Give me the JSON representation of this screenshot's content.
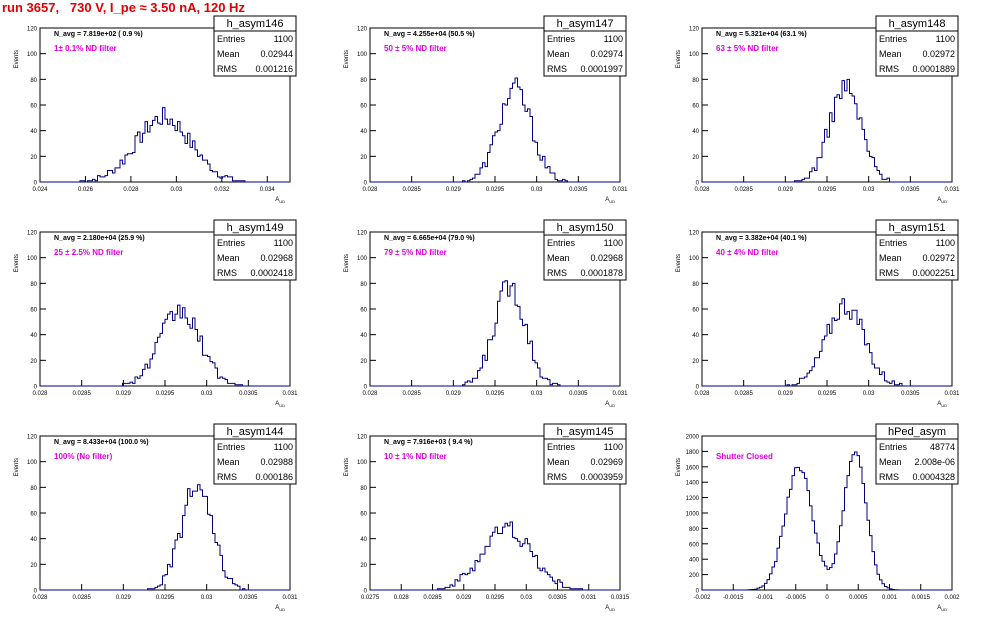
{
  "run_title": "run 3657,   730 V, I_pe ≈ 3.50 nA, 120 Hz",
  "colors": {
    "title": "#e00000",
    "histogram": "#000080",
    "annotation": "#e000e0",
    "text": "#000000"
  },
  "chart_data": [
    {
      "type": "histogram",
      "name": "h_asym146",
      "stats": {
        "entries_label": "Entries",
        "entries": "1100",
        "mean_label": "Mean",
        "mean": "0.02944",
        "rms_label": "RMS",
        "rms": "0.001216"
      },
      "n_avg": "N_avg = 7.819e+02 ( 0.9 %)",
      "filter": "1± 0.1% ND filter",
      "xlabel": "A_UD",
      "ylabel": "Events",
      "xlim": [
        0.024,
        0.035
      ],
      "ylim": [
        0,
        120
      ],
      "xticks": [
        0.024,
        0.026,
        0.028,
        0.03,
        0.032,
        0.034
      ],
      "xtick_labels": [
        "0.024",
        "0.026",
        "0.028",
        "0.03",
        "0.032",
        "0.034"
      ],
      "yticks": [
        0,
        20,
        40,
        60,
        80,
        100,
        120
      ],
      "shape": {
        "mode": "single",
        "center": 0.02944,
        "sigma": 0.001216,
        "peak": 50
      }
    },
    {
      "type": "histogram",
      "name": "h_asym147",
      "stats": {
        "entries_label": "Entries",
        "entries": "1100",
        "mean_label": "Mean",
        "mean": "0.02974",
        "rms_label": "RMS",
        "rms": "0.0001997"
      },
      "n_avg": "N_avg = 4.255e+04 (50.5 %)",
      "filter": "50 ± 5% ND filter",
      "xlabel": "A_UD",
      "ylabel": "Events",
      "xlim": [
        0.028,
        0.031
      ],
      "ylim": [
        0,
        120
      ],
      "xticks": [
        0.028,
        0.0285,
        0.029,
        0.0295,
        0.03,
        0.0305,
        0.031
      ],
      "xtick_labels": [
        "0.028",
        "0.0285",
        "0.029",
        "0.0295",
        "0.03",
        "0.0305",
        "0.031"
      ],
      "yticks": [
        0,
        20,
        40,
        60,
        80,
        100,
        120
      ],
      "shape": {
        "mode": "single",
        "center": 0.02974,
        "sigma": 0.0001997,
        "peak": 72
      }
    },
    {
      "type": "histogram",
      "name": "h_asym148",
      "stats": {
        "entries_label": "Entries",
        "entries": "1100",
        "mean_label": "Mean",
        "mean": "0.02972",
        "rms_label": "RMS",
        "rms": "0.0001889"
      },
      "n_avg": "N_avg = 5.321e+04 (63.1 %)",
      "filter": "63 ± 5% ND filter",
      "xlabel": "A_UD",
      "ylabel": "Events",
      "xlim": [
        0.028,
        0.031
      ],
      "ylim": [
        0,
        120
      ],
      "xticks": [
        0.028,
        0.0285,
        0.029,
        0.0295,
        0.03,
        0.0305,
        0.031
      ],
      "xtick_labels": [
        "0.028",
        "0.0285",
        "0.029",
        "0.0295",
        "0.03",
        "0.0305",
        "0.031"
      ],
      "yticks": [
        0,
        20,
        40,
        60,
        80,
        100,
        120
      ],
      "shape": {
        "mode": "single",
        "center": 0.02972,
        "sigma": 0.0001889,
        "peak": 74
      }
    },
    {
      "type": "histogram",
      "name": "h_asym149",
      "stats": {
        "entries_label": "Entries",
        "entries": "1100",
        "mean_label": "Mean",
        "mean": "0.02968",
        "rms_label": "RMS",
        "rms": "0.0002418"
      },
      "n_avg": "N_avg = 2.180e+04 (25.9 %)",
      "filter": "25 ± 2.5% ND filter",
      "xlabel": "A_UD",
      "ylabel": "Events",
      "xlim": [
        0.028,
        0.031
      ],
      "ylim": [
        0,
        120
      ],
      "xticks": [
        0.028,
        0.0285,
        0.029,
        0.0295,
        0.03,
        0.0305,
        0.031
      ],
      "xtick_labels": [
        "0.028",
        "0.0285",
        "0.029",
        "0.0295",
        "0.03",
        "0.0305",
        "0.031"
      ],
      "yticks": [
        0,
        20,
        40,
        60,
        80,
        100,
        120
      ],
      "shape": {
        "mode": "single",
        "center": 0.02968,
        "sigma": 0.0002418,
        "peak": 58
      }
    },
    {
      "type": "histogram",
      "name": "h_asym150",
      "stats": {
        "entries_label": "Entries",
        "entries": "1100",
        "mean_label": "Mean",
        "mean": "0.02968",
        "rms_label": "RMS",
        "rms": "0.0001878"
      },
      "n_avg": "N_avg = 6.665e+04 (79.0 %)",
      "filter": "79 ± 5% ND filter",
      "xlabel": "A_UD",
      "ylabel": "Events",
      "xlim": [
        0.028,
        0.031
      ],
      "ylim": [
        0,
        120
      ],
      "xticks": [
        0.028,
        0.0285,
        0.029,
        0.0295,
        0.03,
        0.0305,
        0.031
      ],
      "xtick_labels": [
        "0.028",
        "0.0285",
        "0.029",
        "0.0295",
        "0.03",
        "0.0305",
        "0.031"
      ],
      "yticks": [
        0,
        20,
        40,
        60,
        80,
        100,
        120
      ],
      "shape": {
        "mode": "single",
        "center": 0.02968,
        "sigma": 0.0001878,
        "peak": 78
      }
    },
    {
      "type": "histogram",
      "name": "h_asym151",
      "stats": {
        "entries_label": "Entries",
        "entries": "1100",
        "mean_label": "Mean",
        "mean": "0.02972",
        "rms_label": "RMS",
        "rms": "0.0002251"
      },
      "n_avg": "N_avg = 3.382e+04 (40.1 %)",
      "filter": "40 ± 4% ND filter",
      "xlabel": "A_UD",
      "ylabel": "Events",
      "xlim": [
        0.028,
        0.031
      ],
      "ylim": [
        0,
        120
      ],
      "xticks": [
        0.028,
        0.0285,
        0.029,
        0.0295,
        0.03,
        0.0305,
        0.031
      ],
      "xtick_labels": [
        "0.028",
        "0.0285",
        "0.029",
        "0.0295",
        "0.03",
        "0.0305",
        "0.031"
      ],
      "yticks": [
        0,
        20,
        40,
        60,
        80,
        100,
        120
      ],
      "shape": {
        "mode": "single",
        "center": 0.02972,
        "sigma": 0.0002251,
        "peak": 63
      }
    },
    {
      "type": "histogram",
      "name": "h_asym144",
      "stats": {
        "entries_label": "Entries",
        "entries": "1100",
        "mean_label": "Mean",
        "mean": "0.02988",
        "rms_label": "RMS",
        "rms": "0.000186"
      },
      "n_avg": "N_avg = 8.433e+04 (100.0 %)",
      "filter": "100% (No filter)",
      "xlabel": "A_UD",
      "ylabel": "Events",
      "xlim": [
        0.028,
        0.031
      ],
      "ylim": [
        0,
        120
      ],
      "xticks": [
        0.028,
        0.0285,
        0.029,
        0.0295,
        0.03,
        0.0305,
        0.031
      ],
      "xtick_labels": [
        "0.028",
        "0.0285",
        "0.029",
        "0.0295",
        "0.03",
        "0.0305",
        "0.031"
      ],
      "yticks": [
        0,
        20,
        40,
        60,
        80,
        100,
        120
      ],
      "shape": {
        "mode": "single",
        "center": 0.02988,
        "sigma": 0.000186,
        "peak": 80
      }
    },
    {
      "type": "histogram",
      "name": "h_asym145",
      "stats": {
        "entries_label": "Entries",
        "entries": "1100",
        "mean_label": "Mean",
        "mean": "0.02969",
        "rms_label": "RMS",
        "rms": "0.0003959"
      },
      "n_avg": "N_avg = 7.916e+03 ( 9.4 %)",
      "filter": "10 ± 1% ND filter",
      "xlabel": "A_UD",
      "ylabel": "Events",
      "xlim": [
        0.0275,
        0.0315
      ],
      "ylim": [
        0,
        120
      ],
      "xticks": [
        0.0275,
        0.028,
        0.0285,
        0.029,
        0.0295,
        0.03,
        0.0305,
        0.031,
        0.0315
      ],
      "xtick_labels": [
        "0.0275",
        "0.028",
        "0.0285",
        "0.029",
        "0.0295",
        "0.03",
        "0.0305",
        "0.031",
        "0.0315"
      ],
      "yticks": [
        0,
        20,
        40,
        60,
        80,
        100,
        120
      ],
      "shape": {
        "mode": "single",
        "center": 0.02969,
        "sigma": 0.0003959,
        "peak": 48
      }
    },
    {
      "type": "histogram",
      "name": "hPed_asym",
      "stats": {
        "entries_label": "Entries",
        "entries": "48774",
        "mean_label": "Mean",
        "mean": "2.008e-06",
        "rms_label": "RMS",
        "rms": "0.0004328"
      },
      "n_avg": "",
      "filter": "Shutter Closed",
      "xlabel": "A_UD",
      "ylabel": "Events",
      "xlim": [
        -0.002,
        0.002
      ],
      "ylim": [
        0,
        2000
      ],
      "xticks": [
        -0.002,
        -0.0015,
        -0.001,
        -0.0005,
        0,
        0.0005,
        0.001,
        0.0015,
        0.002
      ],
      "xtick_labels": [
        "-0.002",
        "-0.0015",
        "-0.001",
        "-0.0005",
        "0",
        "0.0005",
        "0.001",
        "0.0015",
        "0.002"
      ],
      "yticks": [
        0,
        200,
        400,
        600,
        800,
        1000,
        1200,
        1400,
        1600,
        1800,
        2000
      ],
      "shape": {
        "mode": "double",
        "peaks": [
          {
            "center": -0.00045,
            "sigma": 0.00022,
            "peak": 1600
          },
          {
            "center": 0.00045,
            "sigma": 0.00018,
            "peak": 1820
          }
        ]
      }
    }
  ]
}
